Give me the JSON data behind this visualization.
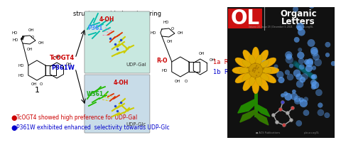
{
  "title_top": "structure-guided engineering",
  "bullet1_color": "#cc0000",
  "bullet2_color": "#0000cc",
  "bullet1_text": "TcOGT4 showed high preference for UDP-Gal",
  "bullet2_text": "P361W exhibited enhanced  selectivity towards UDP-Glc",
  "tcogt4_color": "#cc0000",
  "p361w_color": "#0000cc",
  "label_1a": "1a  R=Gal",
  "label_1b": "1b  R=Glc",
  "ol_bg": "#111111",
  "p361_color": "#4488ff",
  "w361_color": "#22aa22",
  "udpgal_text": "UDP-Gal",
  "udpglc_text": "UDP-Glc",
  "fouroh_text": "4-OH",
  "p361_text": "P361",
  "w361_text": "W361",
  "ro_color": "#cc0000",
  "upper_box_color": "#c8e8e0",
  "lower_box_color": "#c8dce8",
  "ol_red": "#cc1111",
  "journal_name_1": "Organic",
  "journal_name_2": "Letters"
}
